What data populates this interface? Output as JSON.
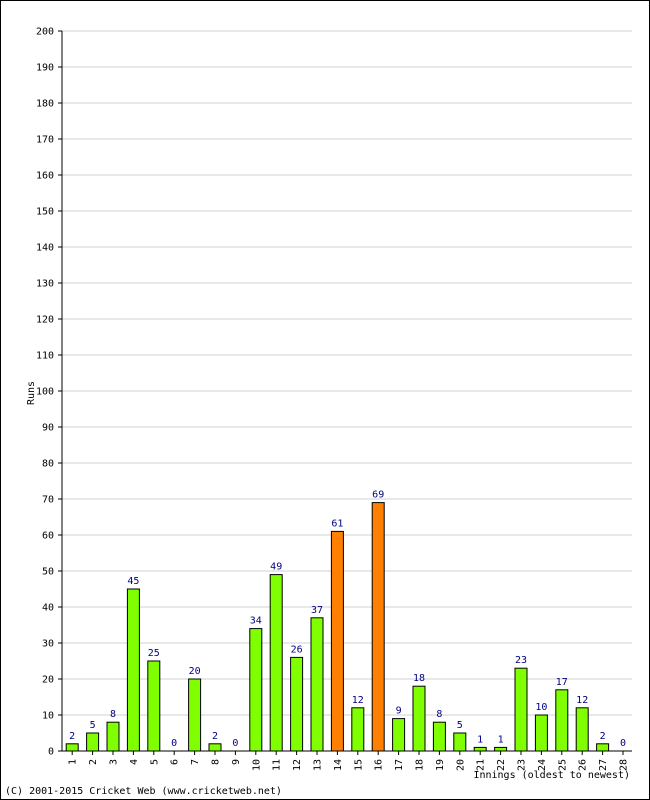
{
  "chart_data": {
    "type": "bar",
    "title": "",
    "xlabel": "Innings (oldest to newest)",
    "ylabel": "Runs",
    "ylim": [
      0,
      200
    ],
    "ytick_step": 10,
    "grid": true,
    "categories": [
      "1",
      "2",
      "3",
      "4",
      "5",
      "6",
      "7",
      "8",
      "9",
      "10",
      "11",
      "12",
      "13",
      "14",
      "15",
      "16",
      "17",
      "18",
      "19",
      "20",
      "21",
      "22",
      "23",
      "24",
      "25",
      "26",
      "27",
      "28"
    ],
    "values": [
      2,
      5,
      8,
      45,
      25,
      0,
      20,
      2,
      0,
      34,
      49,
      26,
      37,
      61,
      12,
      69,
      9,
      18,
      8,
      5,
      1,
      1,
      23,
      10,
      17,
      12,
      2,
      0
    ],
    "highlighted_categories": [
      "14",
      "16"
    ],
    "colors": {
      "bar": "#80ff00",
      "bar_highlight": "#ff8000",
      "bar_stroke": "#000000",
      "grid": "#d0d0d0",
      "data_label": "#000080"
    }
  },
  "footer": {
    "copyright": "(C) 2001-2015 Cricket Web (www.cricketweb.net)"
  }
}
